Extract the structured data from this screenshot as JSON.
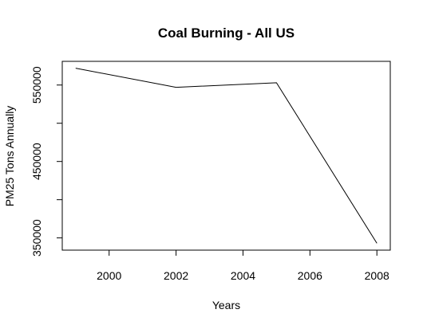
{
  "chart_data": {
    "type": "line",
    "title": "Coal Burning - All US",
    "xlabel": "Years",
    "ylabel": "PM25 Tons Annually",
    "x": [
      1999,
      2002,
      2005,
      2008
    ],
    "series": [
      {
        "values": [
          572000,
          547000,
          553000,
          343000
        ]
      }
    ],
    "xlim": [
      1998.6,
      2008.4
    ],
    "ylim": [
      334000,
      581000
    ],
    "x_ticks": [
      2000,
      2002,
      2004,
      2006,
      2008
    ],
    "y_ticks": [
      350000,
      400000,
      450000,
      500000,
      550000
    ],
    "y_tick_labels": [
      "350000",
      "",
      "450000",
      "",
      "550000"
    ],
    "line_color": "#000000",
    "grid": false,
    "legend": "none"
  }
}
